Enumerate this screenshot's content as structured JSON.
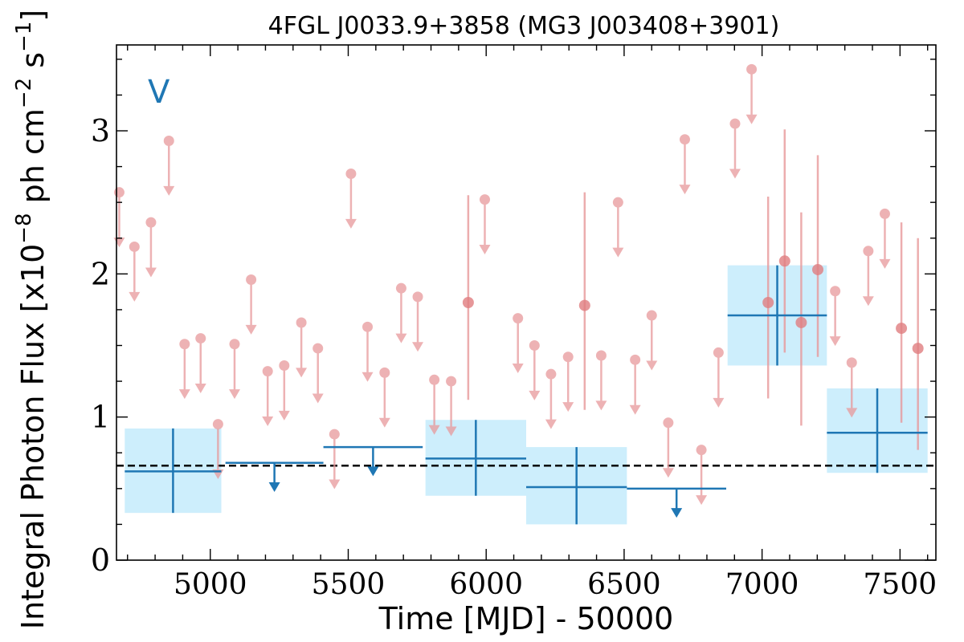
{
  "chart_data": {
    "type": "scatter",
    "title": "4FGL J0033.9+3858 (MG3 J003408+3901)",
    "xlabel": "Time [MJD] - 50000",
    "ylabel": "Integral Photon Flux [x10$^{-8}$ ph cm$^{-2}$ s$^{-1}$]",
    "ylabel_parts": {
      "prefix": "Integral Photon Flux [x10",
      "exp1": "−8",
      "mid": " ph cm",
      "exp2": "−2",
      "mid2": " s",
      "exp3": "−1",
      "suffix": "]"
    },
    "annotation": "V",
    "xlim": [
      4660,
      7630
    ],
    "ylim": [
      0,
      3.6
    ],
    "xticks": [
      5000,
      5500,
      6000,
      6500,
      7000,
      7500
    ],
    "yticks": [
      0,
      1,
      2,
      3
    ],
    "mean_flux": 0.66,
    "colors": {
      "short_upper_limit": "#e8999b",
      "short_detection": "#e07d80",
      "long_bin": "#1f77b4",
      "long_bin_fill": "#cdeefc",
      "mean_line": "#000000",
      "annotation": "#1f77b4"
    },
    "short_bins_upper_limits": [
      {
        "x": 4670,
        "y": 2.57
      },
      {
        "x": 4725,
        "y": 2.19
      },
      {
        "x": 4785,
        "y": 2.36
      },
      {
        "x": 4850,
        "y": 2.93
      },
      {
        "x": 4907,
        "y": 1.51
      },
      {
        "x": 4965,
        "y": 1.55
      },
      {
        "x": 5028,
        "y": 0.95
      },
      {
        "x": 5088,
        "y": 1.51
      },
      {
        "x": 5148,
        "y": 1.96
      },
      {
        "x": 5208,
        "y": 1.32
      },
      {
        "x": 5268,
        "y": 1.36
      },
      {
        "x": 5330,
        "y": 1.66
      },
      {
        "x": 5390,
        "y": 1.48
      },
      {
        "x": 5450,
        "y": 0.88
      },
      {
        "x": 5510,
        "y": 2.7
      },
      {
        "x": 5570,
        "y": 1.63
      },
      {
        "x": 5632,
        "y": 1.31
      },
      {
        "x": 5692,
        "y": 1.9
      },
      {
        "x": 5752,
        "y": 1.84
      },
      {
        "x": 5812,
        "y": 1.26
      },
      {
        "x": 5873,
        "y": 1.25
      },
      {
        "x": 5995,
        "y": 2.52
      },
      {
        "x": 6115,
        "y": 1.69
      },
      {
        "x": 6175,
        "y": 1.5
      },
      {
        "x": 6235,
        "y": 1.3
      },
      {
        "x": 6297,
        "y": 1.42
      },
      {
        "x": 6417,
        "y": 1.43
      },
      {
        "x": 6478,
        "y": 2.5
      },
      {
        "x": 6540,
        "y": 1.4
      },
      {
        "x": 6600,
        "y": 1.71
      },
      {
        "x": 6660,
        "y": 0.96
      },
      {
        "x": 6720,
        "y": 2.94
      },
      {
        "x": 6780,
        "y": 0.77
      },
      {
        "x": 6842,
        "y": 1.45
      },
      {
        "x": 6902,
        "y": 3.05
      },
      {
        "x": 6962,
        "y": 3.43
      },
      {
        "x": 7265,
        "y": 1.88
      },
      {
        "x": 7325,
        "y": 1.38
      },
      {
        "x": 7385,
        "y": 2.16
      },
      {
        "x": 7445,
        "y": 2.42
      }
    ],
    "short_bins_detections": [
      {
        "x": 5935,
        "y": 1.8,
        "lo": 1.12,
        "hi": 2.55
      },
      {
        "x": 6357,
        "y": 1.78,
        "lo": 1.05,
        "hi": 2.57
      },
      {
        "x": 7022,
        "y": 1.8,
        "lo": 1.13,
        "hi": 2.54
      },
      {
        "x": 7082,
        "y": 2.09,
        "lo": 1.45,
        "hi": 3.01
      },
      {
        "x": 7142,
        "y": 1.66,
        "lo": 0.94,
        "hi": 2.43
      },
      {
        "x": 7202,
        "y": 2.03,
        "lo": 1.42,
        "hi": 2.83
      },
      {
        "x": 7505,
        "y": 1.62,
        "lo": 0.96,
        "hi": 2.36
      },
      {
        "x": 7565,
        "y": 1.48,
        "lo": 0.77,
        "hi": 2.25
      }
    ],
    "long_bins_detections": [
      {
        "x0": 4690,
        "x1": 5040,
        "y": 0.62,
        "lo": 0.33,
        "hi": 0.92
      },
      {
        "x0": 5780,
        "x1": 6145,
        "y": 0.71,
        "lo": 0.45,
        "hi": 0.98
      },
      {
        "x0": 6145,
        "x1": 6510,
        "y": 0.51,
        "lo": 0.25,
        "hi": 0.79
      },
      {
        "x0": 6875,
        "x1": 7235,
        "y": 1.71,
        "lo": 1.36,
        "hi": 2.06
      },
      {
        "x0": 7235,
        "x1": 7600,
        "y": 0.89,
        "lo": 0.61,
        "hi": 1.2
      }
    ],
    "long_bins_upper_limits": [
      {
        "x0": 5055,
        "x1": 5410,
        "y": 0.68
      },
      {
        "x0": 5410,
        "x1": 5770,
        "y": 0.79
      },
      {
        "x0": 6510,
        "x1": 6870,
        "y": 0.5
      }
    ]
  }
}
